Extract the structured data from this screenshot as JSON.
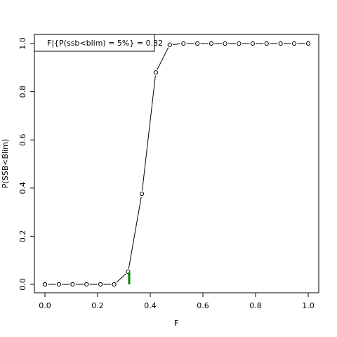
{
  "chart_data": {
    "type": "line",
    "x_label": "F",
    "y_label": "P(SSB<Blim)",
    "legend_text": "F|{P(ssb<blim) = 5%} =  0.32",
    "legend_position": "top-left",
    "x": [
      0,
      0.053,
      0.105,
      0.158,
      0.211,
      0.263,
      0.316,
      0.368,
      0.421,
      0.474,
      0.526,
      0.579,
      0.632,
      0.684,
      0.737,
      0.789,
      0.842,
      0.895,
      0.947,
      1
    ],
    "series": [
      {
        "color": "#000000",
        "values": [
          0,
          0,
          0,
          0,
          0,
          0,
          0.052,
          0.376,
          0.88,
          0.995,
          1,
          1,
          1,
          1,
          1,
          1,
          1,
          1,
          1,
          1
        ]
      }
    ],
    "marker": {
      "x": 0.32,
      "y": 0.05,
      "color": "#008000"
    },
    "xlim": [
      -0.04,
      1.04
    ],
    "ylim": [
      -0.035,
      1.038
    ],
    "xticks": [
      {
        "value": 0,
        "label": "0.0"
      },
      0.2,
      0.4,
      0.6,
      0.8,
      {
        "value": 1,
        "label": "1.0"
      }
    ],
    "yticks": [
      {
        "value": 0,
        "label": "0.0"
      },
      0.2,
      0.4,
      0.6,
      0.8,
      {
        "value": 1,
        "label": "1.0"
      }
    ]
  }
}
